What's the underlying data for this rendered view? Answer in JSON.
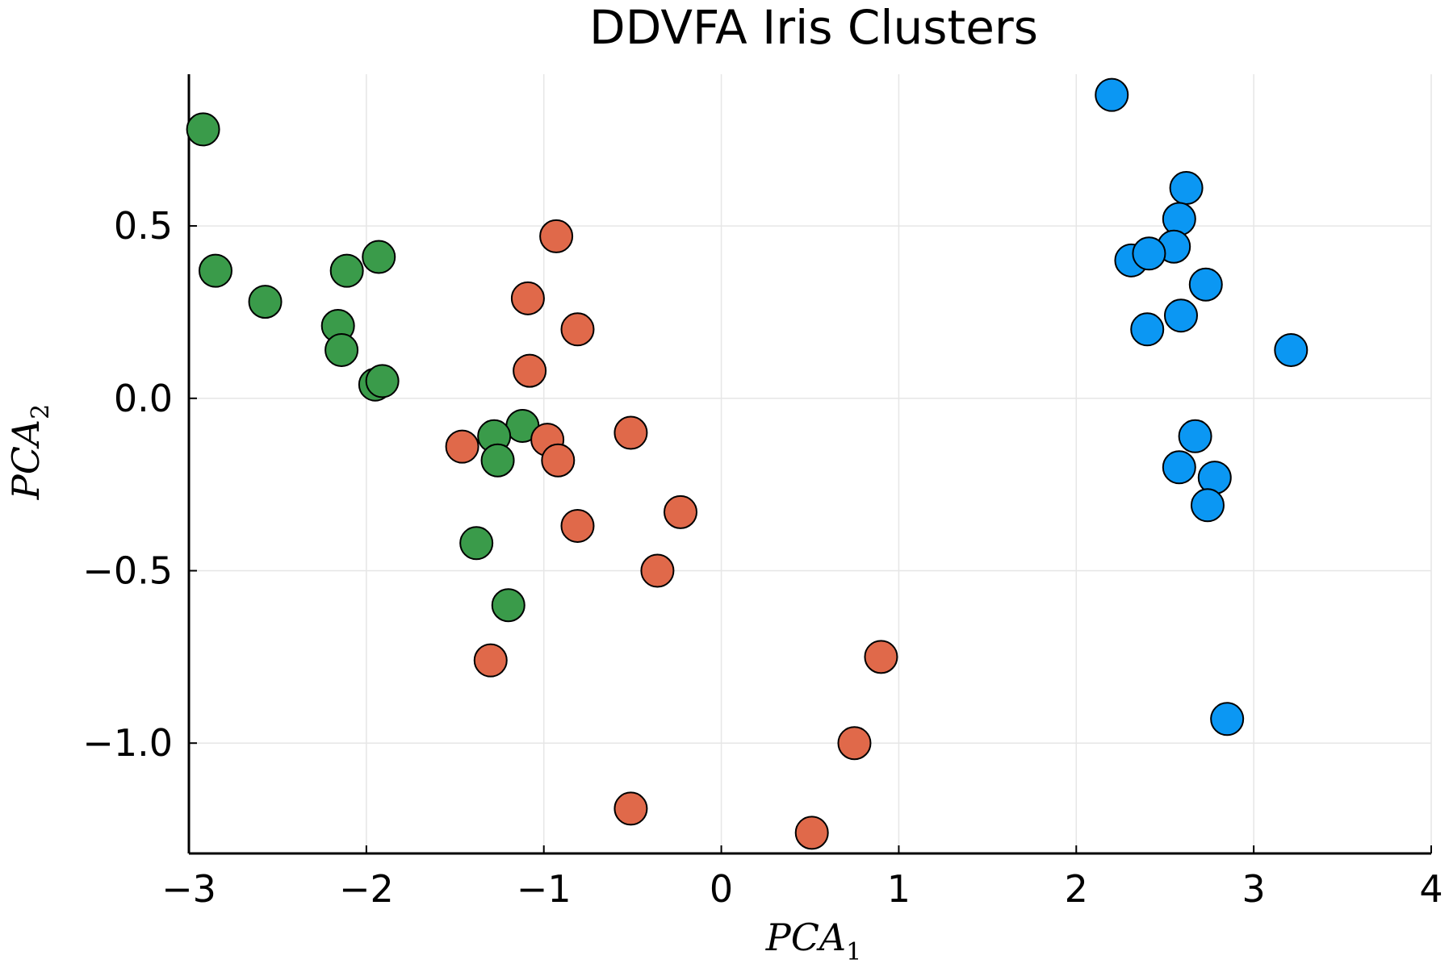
{
  "chart_data": {
    "type": "scatter",
    "title": "DDVFA Iris Clusters",
    "xlabel": "PCA",
    "xlabel_sub": "1",
    "ylabel": "PCA",
    "ylabel_sub": "2",
    "xlim": [
      -3,
      4
    ],
    "ylim": [
      -1.32,
      0.94
    ],
    "xticks": [
      -3,
      -2,
      -1,
      0,
      1,
      2,
      3,
      4
    ],
    "xtick_labels": [
      "−3",
      "−2",
      "−1",
      "0",
      "1",
      "2",
      "3",
      "4"
    ],
    "yticks": [
      0.5,
      0.0,
      -0.5,
      -1.0
    ],
    "ytick_labels": [
      "0.5",
      "0.0",
      "−0.5",
      "−1.0"
    ],
    "grid": true,
    "legend": "none",
    "series": [
      {
        "color": "#3a9b4a",
        "points": [
          [
            -2.92,
            0.78
          ],
          [
            -2.85,
            0.37
          ],
          [
            -2.57,
            0.28
          ],
          [
            -2.16,
            0.21
          ],
          [
            -2.14,
            0.14
          ],
          [
            -2.11,
            0.37
          ],
          [
            -1.93,
            0.41
          ],
          [
            -1.95,
            0.04
          ],
          [
            -1.91,
            0.05
          ],
          [
            -1.12,
            -0.08
          ],
          [
            -1.28,
            -0.11
          ],
          [
            -1.26,
            -0.18
          ],
          [
            -1.38,
            -0.42
          ],
          [
            -1.2,
            -0.6
          ]
        ]
      },
      {
        "color": "#e0694a",
        "points": [
          [
            -0.93,
            0.47
          ],
          [
            -1.09,
            0.29
          ],
          [
            -0.81,
            0.2
          ],
          [
            -1.08,
            0.08
          ],
          [
            -1.46,
            -0.14
          ],
          [
            -0.98,
            -0.12
          ],
          [
            -0.92,
            -0.18
          ],
          [
            -0.51,
            -0.1
          ],
          [
            -0.81,
            -0.37
          ],
          [
            -0.23,
            -0.33
          ],
          [
            -0.36,
            -0.5
          ],
          [
            -1.3,
            -0.76
          ],
          [
            0.9,
            -0.75
          ],
          [
            0.75,
            -1.0
          ],
          [
            -0.51,
            -1.19
          ],
          [
            0.51,
            -1.26
          ]
        ]
      },
      {
        "color": "#0b97f3",
        "points": [
          [
            2.2,
            0.88
          ],
          [
            2.62,
            0.61
          ],
          [
            2.58,
            0.52
          ],
          [
            2.55,
            0.44
          ],
          [
            2.31,
            0.4
          ],
          [
            2.41,
            0.42
          ],
          [
            2.73,
            0.33
          ],
          [
            2.59,
            0.24
          ],
          [
            2.4,
            0.2
          ],
          [
            3.21,
            0.14
          ],
          [
            2.67,
            -0.11
          ],
          [
            2.58,
            -0.2
          ],
          [
            2.78,
            -0.23
          ],
          [
            2.74,
            -0.31
          ],
          [
            2.85,
            -0.93
          ]
        ]
      }
    ]
  }
}
